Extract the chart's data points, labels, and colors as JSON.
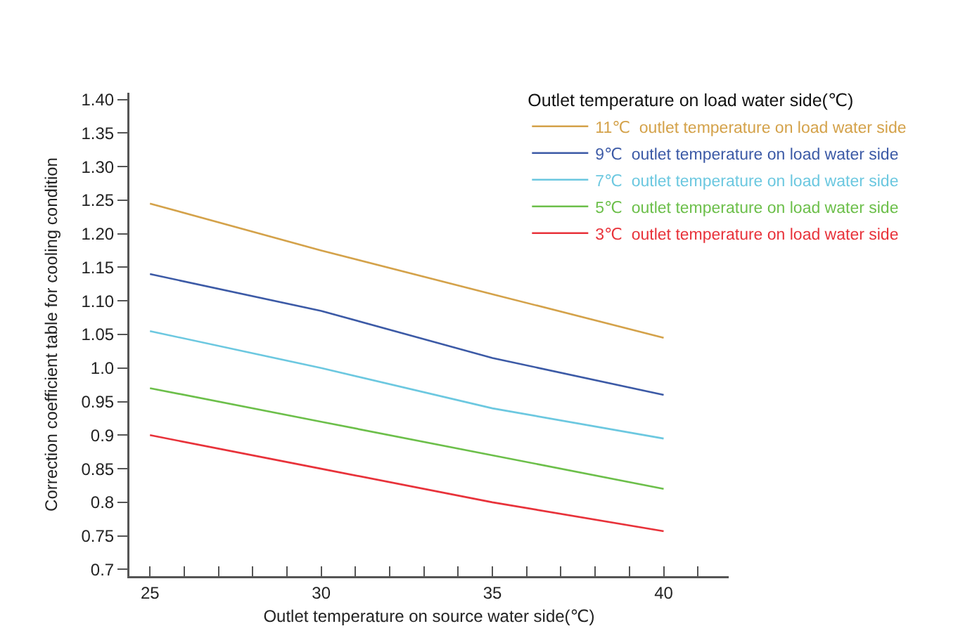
{
  "chart_data": {
    "type": "line",
    "xlabel": "Outlet temperature on source water side(℃)",
    "ylabel": "Correction coefficient table for cooling condition",
    "legend_title": "Outlet temperature on load water side(℃)",
    "x": [
      25,
      30,
      35,
      40
    ],
    "series": [
      {
        "name": "11℃  outlet temperature on load water side",
        "color": "#d4a24a",
        "values": [
          1.245,
          1.175,
          1.11,
          1.045
        ]
      },
      {
        "name": "9℃  outlet temperature on load water side",
        "color": "#3c5aa6",
        "values": [
          1.14,
          1.085,
          1.015,
          0.96
        ]
      },
      {
        "name": "7℃  outlet temperature on load water side",
        "color": "#6cc8e0",
        "values": [
          1.055,
          1.0,
          0.94,
          0.895
        ]
      },
      {
        "name": "5℃  outlet temperature on load water side",
        "color": "#6cbf4a",
        "values": [
          0.97,
          0.92,
          0.87,
          0.82
        ]
      },
      {
        "name": "3℃  outlet temperature on load water side",
        "color": "#e8323a",
        "values": [
          0.9,
          0.85,
          0.8,
          0.757
        ]
      }
    ],
    "xlim": [
      24.4,
      41.9
    ],
    "xticks": [
      25,
      {
        "value": 26,
        "label": null
      },
      {
        "value": 27,
        "label": null
      },
      {
        "value": 28,
        "label": null
      },
      {
        "value": 29,
        "label": null
      },
      30,
      {
        "value": 31,
        "label": null
      },
      {
        "value": 32,
        "label": null
      },
      {
        "value": 33,
        "label": null
      },
      {
        "value": 34,
        "label": null
      },
      35,
      {
        "value": 36,
        "label": null
      },
      {
        "value": 37,
        "label": null
      },
      {
        "value": 38,
        "label": null
      },
      {
        "value": 39,
        "label": null
      },
      40,
      {
        "value": 41,
        "label": null
      }
    ],
    "ylim": [
      0.69,
      1.41
    ],
    "yticks": [
      {
        "value": 0.7,
        "label": "0.7"
      },
      0.75,
      {
        "value": 0.8,
        "label": "0.8"
      },
      0.85,
      {
        "value": 0.9,
        "label": "0.9"
      },
      0.95,
      {
        "value": 1,
        "label": "1.0"
      },
      1.05,
      {
        "value": 1.1,
        "label": "1.10"
      },
      1.15,
      {
        "value": 1.2,
        "label": "1.20"
      },
      1.25,
      {
        "value": 1.3,
        "label": "1.30"
      },
      1.35,
      {
        "value": 1.4,
        "label": "1.40"
      }
    ],
    "grid": false,
    "legend": "top right",
    "marker": "none",
    "line_style": "solid"
  }
}
